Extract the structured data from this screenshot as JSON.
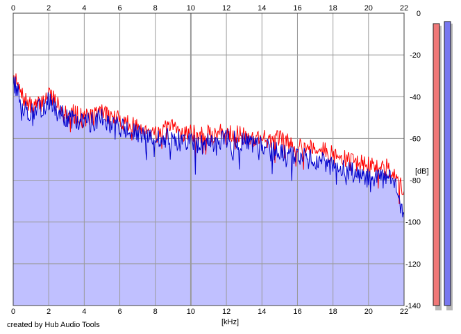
{
  "footer": "created by Hub Audio Tools",
  "chart_data": {
    "type": "area",
    "xlabel": "[kHz]",
    "ylabel": "[dB]",
    "xlim": [
      0,
      22
    ],
    "ylim": [
      -140,
      0
    ],
    "x_ticks": [
      0,
      2,
      4,
      6,
      8,
      10,
      12,
      14,
      16,
      18,
      20,
      22
    ],
    "y_ticks": [
      0,
      -20,
      -40,
      -60,
      -80,
      -100,
      -120,
      -140
    ],
    "grid": true,
    "x_axis_labels": "top and bottom",
    "y_axis_labels": "right",
    "x": [
      0,
      0.5,
      1,
      1.5,
      2,
      2.5,
      3,
      3.5,
      4,
      4.5,
      5,
      5.5,
      6,
      6.5,
      7,
      7.5,
      8,
      8.5,
      9,
      9.5,
      10,
      10.5,
      11,
      11.5,
      12,
      12.5,
      13,
      13.5,
      14,
      14.5,
      15,
      15.5,
      16,
      16.5,
      17,
      17.5,
      18,
      18.5,
      19,
      19.5,
      20,
      20.5,
      21,
      21.5,
      22
    ],
    "series": [
      {
        "color": "#ff0000",
        "values": [
          -30,
          -40,
          -45,
          -44,
          -38,
          -43,
          -47,
          -48,
          -50,
          -49,
          -46,
          -50,
          -51,
          -53,
          -55,
          -55,
          -57,
          -56,
          -55,
          -57,
          -57,
          -59,
          -58,
          -58,
          -56,
          -58,
          -59,
          -60,
          -59,
          -61,
          -60,
          -62,
          -63,
          -64,
          -64,
          -66,
          -68,
          -70,
          -70,
          -72,
          -73,
          -74,
          -74,
          -76,
          -87
        ]
      },
      {
        "color": "#0000cc",
        "values": [
          -32,
          -44,
          -48,
          -46,
          -42,
          -47,
          -50,
          -52,
          -52,
          -52,
          -49,
          -53,
          -54,
          -57,
          -58,
          -60,
          -60,
          -60,
          -60,
          -62,
          -61,
          -63,
          -62,
          -61,
          -60,
          -61,
          -62,
          -63,
          -64,
          -66,
          -66,
          -68,
          -68,
          -69,
          -70,
          -72,
          -74,
          -75,
          -76,
          -78,
          -79,
          -79,
          -79,
          -81,
          -100
        ]
      }
    ],
    "fill_color": "#c0c0ff",
    "level_meters": {
      "left": {
        "color": "#f07878",
        "level_db": -5
      },
      "right": {
        "color": "#7878f0",
        "level_db": -4
      }
    }
  }
}
